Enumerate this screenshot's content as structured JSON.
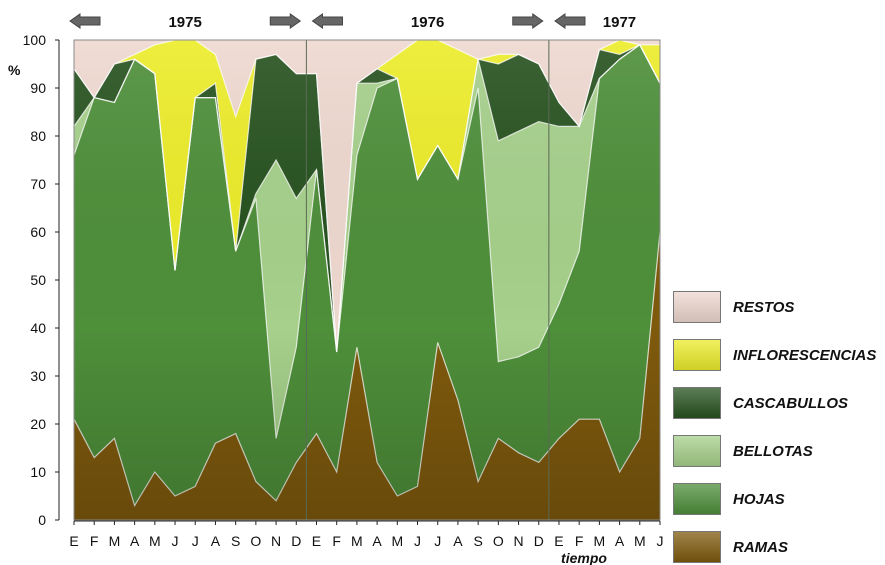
{
  "chart_data": {
    "type": "area",
    "stacked": true,
    "ylabel": "%",
    "xlabel": "tiempo",
    "ylim": [
      0,
      100
    ],
    "yticks": [
      0,
      10,
      20,
      30,
      40,
      50,
      60,
      70,
      80,
      90,
      100
    ],
    "categories": [
      "E",
      "F",
      "M",
      "A",
      "M",
      "J",
      "J",
      "A",
      "S",
      "O",
      "N",
      "D",
      "E",
      "F",
      "M",
      "A",
      "M",
      "J",
      "J",
      "A",
      "S",
      "O",
      "N",
      "D",
      "E",
      "F",
      "M",
      "A",
      "M",
      "J"
    ],
    "years": [
      {
        "label": "1975",
        "start_month": 0,
        "end_month": 11
      },
      {
        "label": "1976",
        "start_month": 12,
        "end_month": 23
      },
      {
        "label": "1977",
        "start_month": 24,
        "end_month": 29
      }
    ],
    "year_dividers": [
      11.5,
      23.5
    ],
    "legend_position": "right",
    "series": [
      {
        "name": "RAMAS",
        "color": "#7f5a0d",
        "values": [
          21,
          13,
          17,
          3,
          10,
          5,
          7,
          16,
          18,
          8,
          4,
          12,
          18,
          10,
          36,
          12,
          5,
          7,
          37,
          25,
          8,
          17,
          14,
          12,
          17,
          21,
          21,
          10,
          17,
          60
        ]
      },
      {
        "name": "HOJAS",
        "color": "#4e8f3a",
        "values": [
          55,
          75,
          70,
          93,
          83,
          47,
          81,
          72,
          38,
          59,
          13,
          24,
          55,
          25,
          40,
          78,
          87,
          64,
          41,
          46,
          82,
          16,
          20,
          24,
          28,
          35,
          71,
          86,
          82,
          31
        ]
      },
      {
        "name": "BELLOTAS",
        "color": "#a6d08b",
        "values": [
          6,
          0,
          0,
          0,
          0,
          0,
          0,
          0,
          0,
          1,
          58,
          31,
          0,
          0,
          15,
          1,
          0,
          0,
          0,
          0,
          6,
          46,
          47,
          47,
          37,
          26,
          0,
          0,
          0,
          0
        ]
      },
      {
        "name": "CASCABULLOS",
        "color": "#27521f",
        "values": [
          12,
          0,
          8,
          0,
          0,
          0,
          0,
          3,
          0,
          28,
          22,
          26,
          20,
          0,
          0,
          3,
          0,
          0,
          0,
          0,
          0,
          16,
          16,
          12,
          5,
          0,
          6,
          1,
          0,
          0
        ]
      },
      {
        "name": "INFLORESCENCIAS",
        "color": "#ecec2a",
        "values": [
          0,
          0,
          0,
          1,
          6,
          48,
          12,
          6,
          28,
          0,
          0,
          0,
          0,
          0,
          0,
          0,
          5,
          29,
          22,
          27,
          0,
          2,
          0,
          0,
          0,
          0,
          0,
          3,
          0,
          8
        ]
      },
      {
        "name": "RESTOS",
        "color": "#eed8cf",
        "values": [
          6,
          12,
          5,
          3,
          1,
          0,
          0,
          3,
          16,
          4,
          3,
          7,
          7,
          65,
          9,
          6,
          3,
          0,
          0,
          2,
          4,
          3,
          3,
          5,
          13,
          18,
          2,
          0,
          1,
          1
        ]
      }
    ]
  }
}
